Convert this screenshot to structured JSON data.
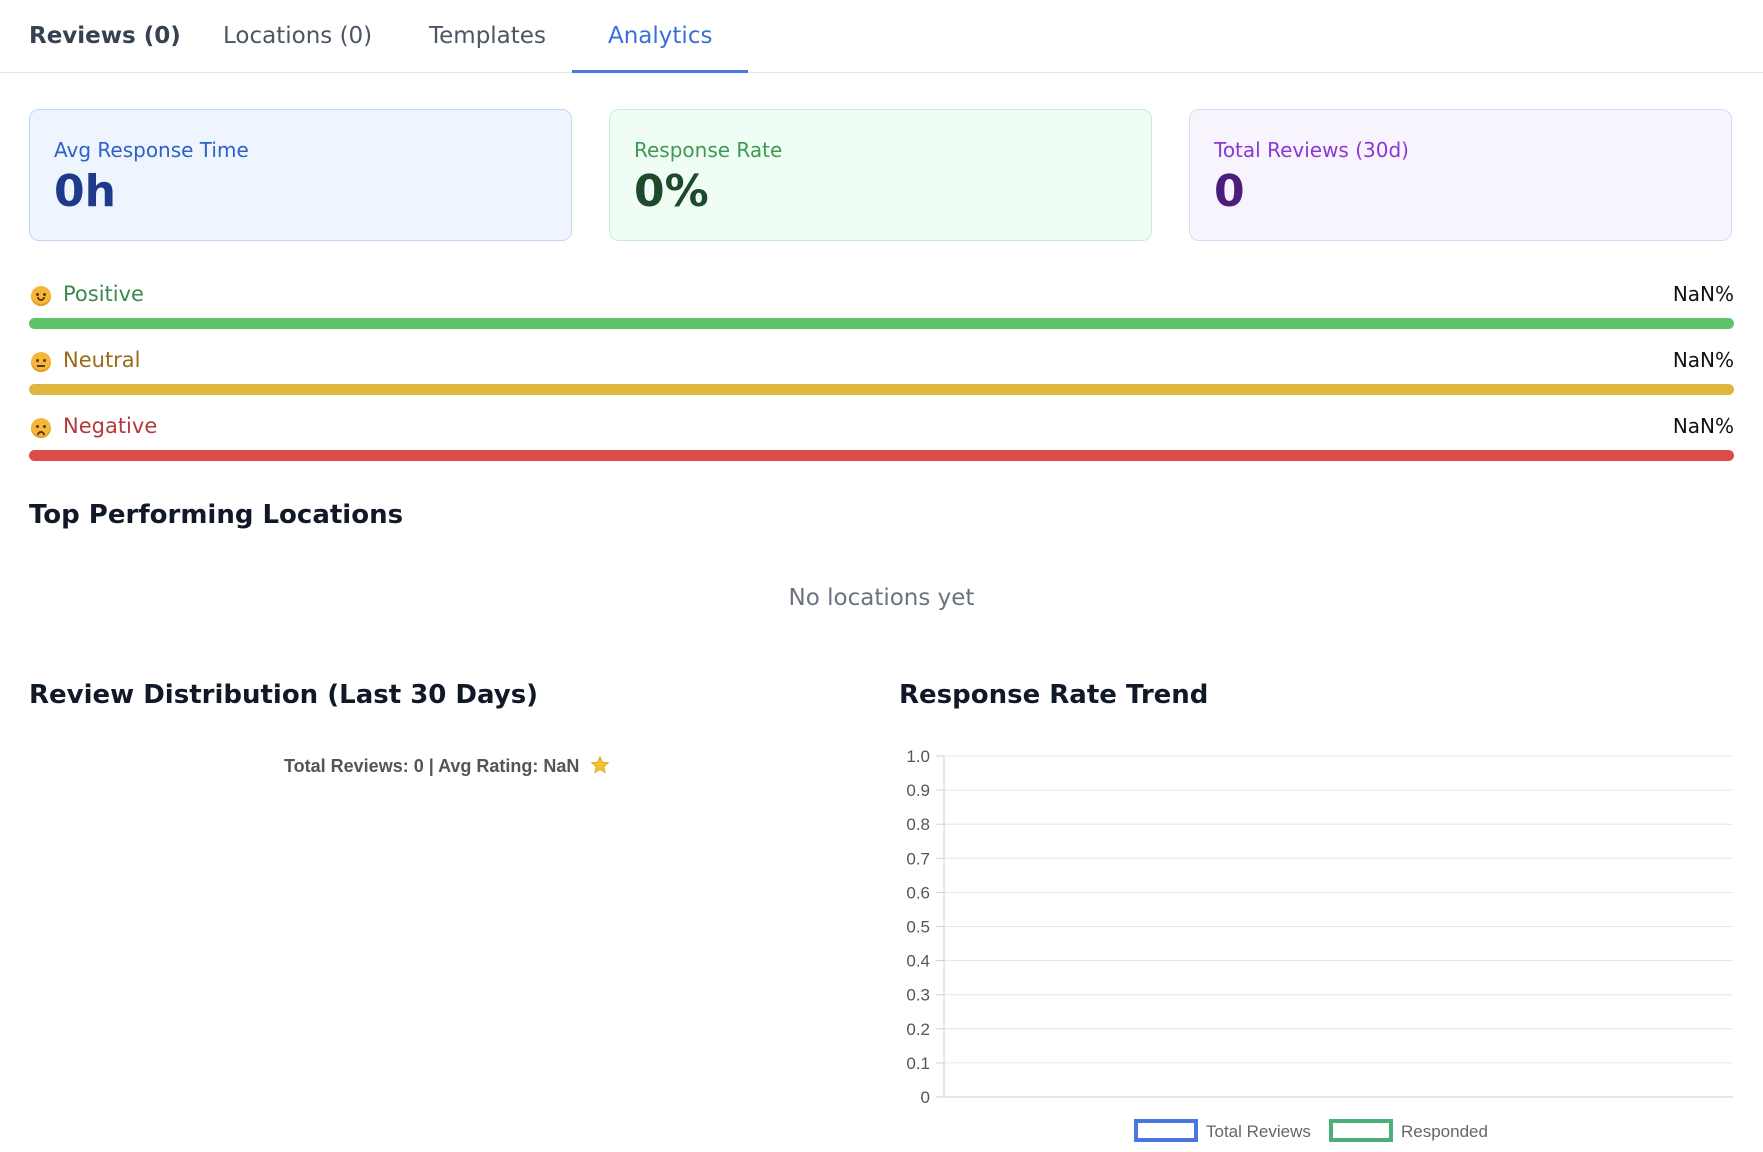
{
  "tabs": [
    {
      "label": "Reviews (0)"
    },
    {
      "label": "Locations (0)"
    },
    {
      "label": "Templates"
    },
    {
      "label": "Analytics"
    }
  ],
  "stats": {
    "avg_response": {
      "label": "Avg Response Time",
      "value": "0h"
    },
    "response_rate": {
      "label": "Response Rate",
      "value": "0%"
    },
    "total_reviews": {
      "label": "Total Reviews (30d)",
      "value": "0"
    }
  },
  "sentiment": [
    {
      "label": "Positive",
      "percent": "NaN%",
      "color": "#5dc26a",
      "text_color": "#3b8a4a",
      "icon": "smile-icon"
    },
    {
      "label": "Neutral",
      "percent": "NaN%",
      "color": "#e0b63f",
      "text_color": "#9a6a1a",
      "icon": "neutral-face-icon"
    },
    {
      "label": "Negative",
      "percent": "NaN%",
      "color": "#dd4b4b",
      "text_color": "#b23a3a",
      "icon": "sad-face-icon"
    }
  ],
  "top_locations": {
    "title": "Top Performing Locations",
    "empty_text": "No locations yet"
  },
  "distribution": {
    "title": "Review Distribution (Last 30 Days)",
    "summary": "Total Reviews: 0 | Avg Rating: NaN"
  },
  "trend": {
    "title": "Response Rate Trend"
  },
  "chart_data": {
    "type": "line",
    "x": [],
    "series": [
      {
        "name": "Total Reviews",
        "values": [],
        "color": "#4a76e0"
      },
      {
        "name": "Responded",
        "values": [],
        "color": "#4caf7a"
      }
    ],
    "ylim": [
      0,
      1
    ],
    "yticks": [
      "0",
      "0.1",
      "0.2",
      "0.3",
      "0.4",
      "0.5",
      "0.6",
      "0.7",
      "0.8",
      "0.9",
      "1.0"
    ],
    "grid": true,
    "legend": "bottom"
  }
}
